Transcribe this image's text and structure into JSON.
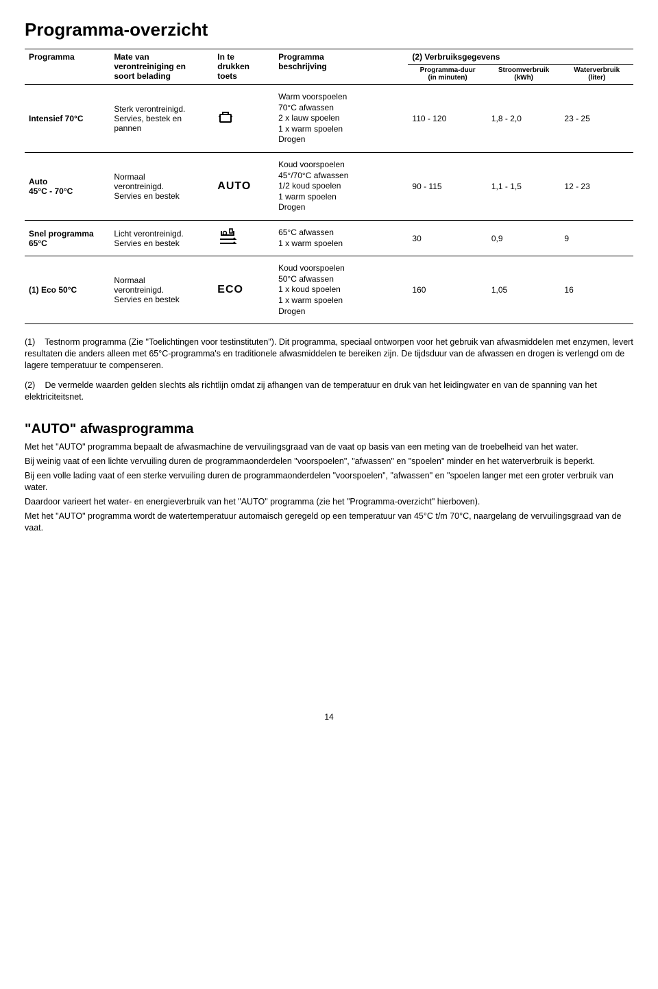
{
  "page": {
    "title": "Programma-overzicht",
    "number": "14"
  },
  "table": {
    "headers": {
      "program": "Programma",
      "soil": "Mate van\nverontreiniging en\nsoort belading",
      "key": "In te\ndrukken\ntoets",
      "desc": "Programma\nbeschrijving",
      "cons_group": "(2) Verbruiksgegevens",
      "duration": "Programma-duur\n(in minuten)",
      "power": "Stroomverbruik\n(kWh)",
      "water": "Waterverbruik\n(liter)"
    },
    "rows": [
      {
        "program": "Intensief 70°C",
        "soil": "Sterk verontreinigd.\nServies, bestek en\npannen",
        "key_type": "pot",
        "desc": "Warm voorspoelen\n70°C afwassen\n2 x lauw spoelen\n1 x warm spoelen\nDrogen",
        "duration": "110 - 120",
        "power": "1,8 - 2,0",
        "water": "23 - 25"
      },
      {
        "program": "Auto\n45°C - 70°C",
        "soil": "Normaal\nverontreinigd.\nServies en bestek",
        "key_type": "label",
        "key_label": "AUTO",
        "desc": "Koud voorspoelen\n45°/70°C afwassen\n1/2 koud spoelen\n1 warm spoelen\nDrogen",
        "duration": "90 - 115",
        "power": "1,1 - 1,5",
        "water": "12 - 23"
      },
      {
        "program": "Snel programma\n65°C",
        "soil": "Licht verontreinigd.\nServies en bestek",
        "key_type": "tray",
        "desc": "65°C afwassen\n1 x warm spoelen",
        "duration": "30",
        "power": "0,9",
        "water": "9"
      },
      {
        "program": "(1) Eco 50°C",
        "soil": "Normaal\nverontreinigd.\nServies en bestek",
        "key_type": "label",
        "key_label": "ECO",
        "desc": "Koud voorspoelen\n50°C afwassen\n1 x koud spoelen\n1 x warm spoelen\nDrogen",
        "duration": "160",
        "power": "1,05",
        "water": "16"
      }
    ]
  },
  "notes": {
    "n1_tag": "(1)",
    "n1": "Testnorm programma (Zie \"Toelichtingen voor testinstituten\"). Dit programma, speciaal ontworpen voor het gebruik van afwasmiddelen met enzymen, levert resultaten die anders alleen met 65°C-programma's en traditionele afwasmiddelen te bereiken zijn. De tijdsduur van de afwassen en drogen is verlengd om de lagere temperatuur te compenseren.",
    "n2_tag": "(2)",
    "n2": "De vermelde waarden gelden slechts als richtlijn omdat zij afhangen van de temperatuur en druk van het leidingwater en van de spanning van het elektriciteitsnet."
  },
  "auto_section": {
    "heading": "\"AUTO\" afwasprogramma",
    "p1": "Met het \"AUTO\" programma bepaalt de afwasmachine de vervuilingsgraad van de vaat op basis van een meting van de troebelheid van het water.",
    "p2": "Bij weinig vaat of een lichte vervuiling duren de programmaonderdelen \"voorspoelen\", \"afwassen\" en \"spoelen\" minder en het waterverbruik is beperkt.",
    "p3": "Bij een volle lading vaat of een sterke vervuiling duren de programmaonderdelen \"voorspoelen\", \"afwassen\" en \"spoelen langer met een groter verbruik van water.",
    "p4": "Daardoor varieert het water- en energieverbruik van het \"AUTO\" programma (zie het \"Programma-overzicht\" hierboven).",
    "p5": "Met het \"AUTO\" programma wordt de watertemperatuur automaisch geregeld op een temperatuur van 45°C t/m 70°C, naargelang de vervuilingsgraad van de vaat."
  }
}
